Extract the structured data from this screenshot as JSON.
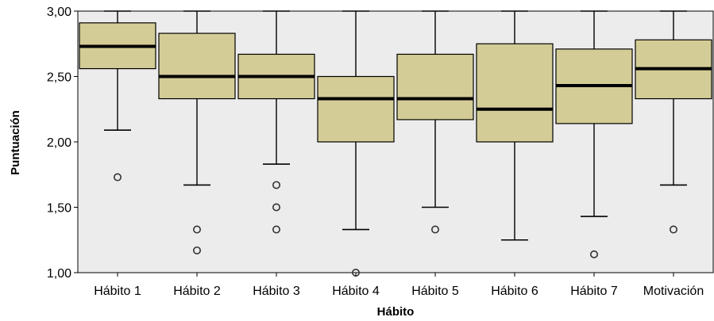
{
  "chart_data": {
    "type": "boxplot",
    "xlabel": "Hábito",
    "ylabel": "Puntuación",
    "ylim": [
      1.0,
      3.0
    ],
    "yticks": [
      "1,00",
      "1,50",
      "2,00",
      "2,50",
      "3,00"
    ],
    "categories": [
      "Hábito 1",
      "Hábito 2",
      "Hábito 3",
      "Hábito 4",
      "Hábito 5",
      "Hábito 6",
      "Hábito 7",
      "Motivación"
    ],
    "boxes": [
      {
        "whisker_low": 2.09,
        "q1": 2.56,
        "median": 2.73,
        "q3": 2.91,
        "whisker_high": 3.0,
        "outliers": [
          1.73
        ]
      },
      {
        "whisker_low": 1.67,
        "q1": 2.33,
        "median": 2.5,
        "q3": 2.83,
        "whisker_high": 3.0,
        "outliers": [
          1.33,
          1.17
        ]
      },
      {
        "whisker_low": 1.83,
        "q1": 2.33,
        "median": 2.5,
        "q3": 2.67,
        "whisker_high": 3.0,
        "outliers": [
          1.67,
          1.5,
          1.33
        ]
      },
      {
        "whisker_low": 1.33,
        "q1": 2.0,
        "median": 2.33,
        "q3": 2.5,
        "whisker_high": 3.0,
        "outliers": [
          1.0
        ]
      },
      {
        "whisker_low": 1.5,
        "q1": 2.17,
        "median": 2.33,
        "q3": 2.67,
        "whisker_high": 3.0,
        "outliers": [
          1.33
        ]
      },
      {
        "whisker_low": 1.25,
        "q1": 2.0,
        "median": 2.25,
        "q3": 2.75,
        "whisker_high": 3.0,
        "outliers": []
      },
      {
        "whisker_low": 1.43,
        "q1": 2.14,
        "median": 2.43,
        "q3": 2.71,
        "whisker_high": 3.0,
        "outliers": [
          1.14
        ]
      },
      {
        "whisker_low": 1.67,
        "q1": 2.33,
        "median": 2.56,
        "q3": 2.78,
        "whisker_high": 3.0,
        "outliers": [
          1.33
        ]
      }
    ],
    "colors": {
      "plot_background": "#ececec",
      "box_fill": "#d4cc96",
      "box_stroke": "#000000"
    },
    "grid": false
  }
}
